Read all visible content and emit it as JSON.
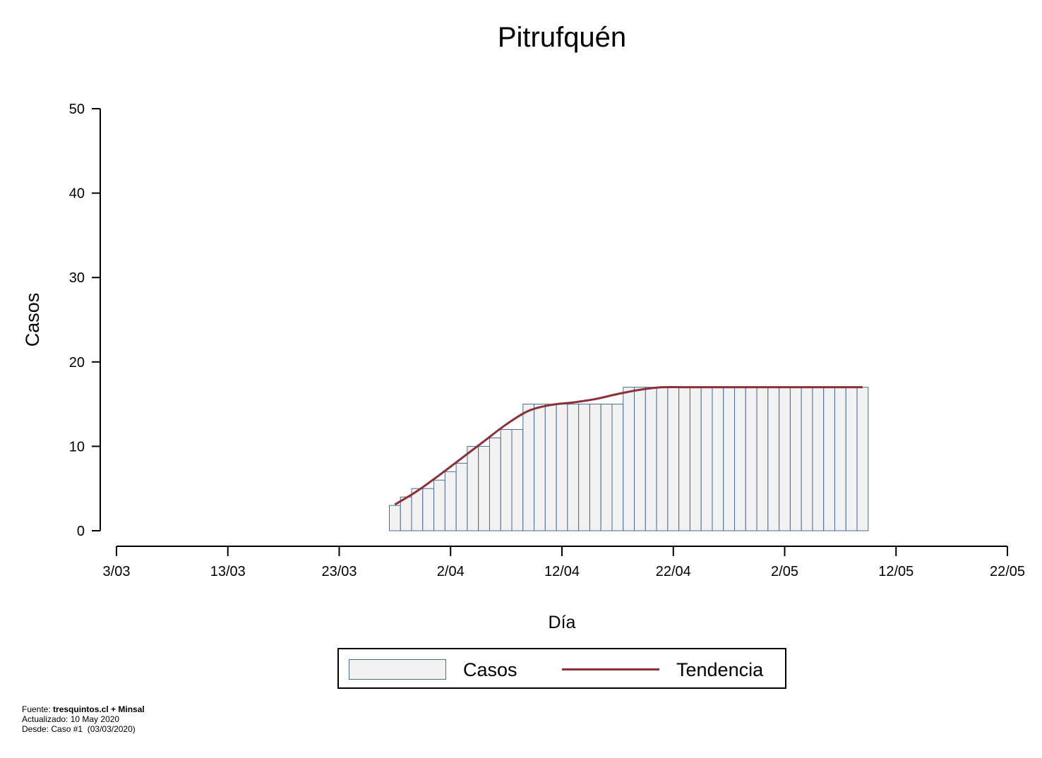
{
  "chart_data": {
    "type": "bar",
    "title": "Pitrufquén",
    "xlabel": "Día",
    "ylabel": "Casos",
    "ylim": [
      0,
      50
    ],
    "yticks": [
      0,
      10,
      20,
      30,
      40,
      50
    ],
    "xlim_day": [
      0,
      80
    ],
    "xticks": [
      {
        "day": 0,
        "label": "3/03"
      },
      {
        "day": 10,
        "label": "13/03"
      },
      {
        "day": 20,
        "label": "23/03"
      },
      {
        "day": 30,
        "label": "2/04"
      },
      {
        "day": 40,
        "label": "12/04"
      },
      {
        "day": 50,
        "label": "22/04"
      },
      {
        "day": 60,
        "label": "2/05"
      },
      {
        "day": 70,
        "label": "12/05"
      },
      {
        "day": 80,
        "label": "22/05"
      }
    ],
    "series": [
      {
        "name": "Casos",
        "x": [
          "28/03",
          "29/03",
          "30/03",
          "31/03",
          "1/04",
          "2/04",
          "3/04",
          "4/04",
          "5/04",
          "6/04",
          "7/04",
          "8/04",
          "9/04",
          "10/04",
          "11/04",
          "12/04",
          "13/04",
          "14/04",
          "15/04",
          "16/04",
          "17/04",
          "18/04",
          "19/04",
          "20/04",
          "21/04",
          "22/04",
          "23/04",
          "24/04",
          "25/04",
          "26/04",
          "27/04",
          "28/04",
          "29/04",
          "30/04",
          "1/05",
          "2/05",
          "3/05",
          "4/05",
          "5/05",
          "6/05",
          "7/05",
          "8/05",
          "9/05"
        ],
        "values": [
          3,
          4,
          5,
          5,
          6,
          7,
          8,
          10,
          10,
          11,
          12,
          12,
          15,
          15,
          15,
          15,
          15,
          15,
          15,
          15,
          15,
          17,
          17,
          17,
          17,
          17,
          17,
          17,
          17,
          17,
          17,
          17,
          17,
          17,
          17,
          17,
          17,
          17,
          17,
          17,
          17,
          17,
          17
        ],
        "color": "#f2f2f2",
        "edge_color": "#4a6a94"
      },
      {
        "name": "Tendencia",
        "x": [
          "28/03",
          "30/03",
          "1/04",
          "3/04",
          "5/04",
          "7/04",
          "9/04",
          "11/04",
          "13/04",
          "15/04",
          "17/04",
          "19/04",
          "21/04",
          "23/04",
          "25/04",
          "27/04",
          "29/04",
          "1/05",
          "3/05",
          "5/05",
          "7/05",
          "9/05"
        ],
        "values": [
          3.1,
          4.7,
          6.6,
          8.6,
          10.6,
          12.6,
          14.2,
          14.9,
          15.2,
          15.6,
          16.2,
          16.7,
          17.0,
          17.0,
          17.0,
          17.0,
          17.0,
          17.0,
          17.0,
          17.0,
          17.0,
          17.0
        ],
        "color": "#8b3035"
      }
    ],
    "legend_position": "bottom"
  },
  "footer": {
    "source_prefix": "Fuente: ",
    "source_bold": "tresquintos.cl + Minsal",
    "updated": "Actualizado: 10 May 2020",
    "since": "Desde: Caso #1  (03/03/2020)"
  }
}
